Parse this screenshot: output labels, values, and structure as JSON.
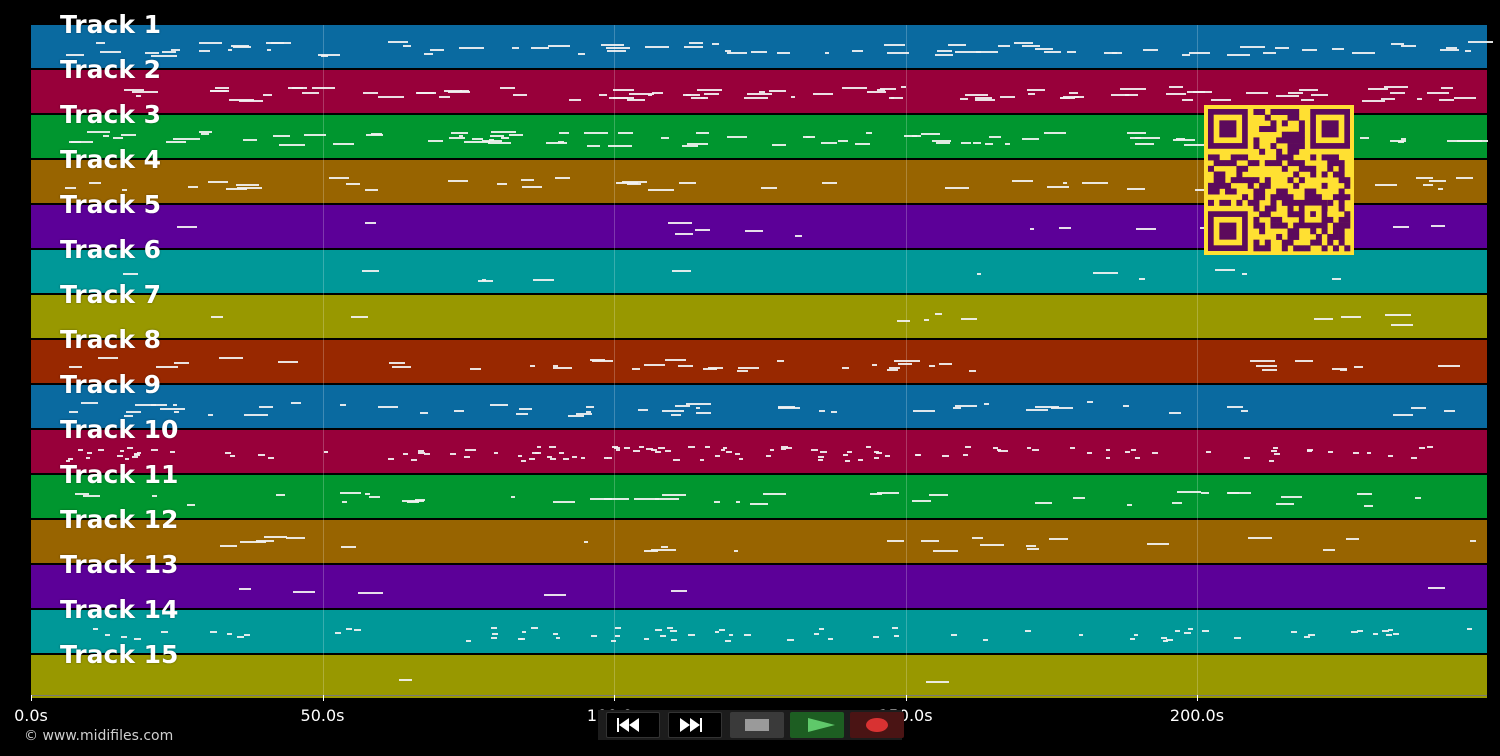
{
  "tracks": [
    {
      "label": "Track 1",
      "color": "#0a6aa0"
    },
    {
      "label": "Track 2",
      "color": "#98003a"
    },
    {
      "label": "Track 3",
      "color": "#00962f"
    },
    {
      "label": "Track 4",
      "color": "#986400"
    },
    {
      "label": "Track 5",
      "color": "#5c0098"
    },
    {
      "label": "Track 6",
      "color": "#009898"
    },
    {
      "label": "Track 7",
      "color": "#989800"
    },
    {
      "label": "Track 8",
      "color": "#982800"
    },
    {
      "label": "Track 9",
      "color": "#0a6aa0"
    },
    {
      "label": "Track 10",
      "color": "#98003a"
    },
    {
      "label": "Track 11",
      "color": "#00962f"
    },
    {
      "label": "Track 12",
      "color": "#986400"
    },
    {
      "label": "Track 13",
      "color": "#5c0098"
    },
    {
      "label": "Track 14",
      "color": "#009898"
    },
    {
      "label": "Track 15",
      "color": "#989800"
    }
  ],
  "timeline": {
    "ticks": [
      "0.0s",
      "50.0s",
      "100.0s",
      "150.0s",
      "200.0s"
    ],
    "duration_s": 250
  },
  "copyright": "© www.midifiles.com",
  "transport": {
    "buttons": [
      {
        "name": "rewind-button",
        "icon": "rewind-icon",
        "color": "#000000"
      },
      {
        "name": "fast-forward-button",
        "icon": "fast-forward-icon",
        "color": "#000000"
      },
      {
        "name": "stop-button",
        "icon": "stop-icon",
        "color": "#3a3a3a"
      },
      {
        "name": "play-button",
        "icon": "play-icon",
        "color": "#1d5e22"
      },
      {
        "name": "record-button",
        "icon": "record-icon",
        "color": "#4a1414"
      }
    ]
  },
  "qr_code": {
    "icon": "qr-code-icon",
    "color": "#ffe032",
    "module_color": "#5c0a5c"
  }
}
